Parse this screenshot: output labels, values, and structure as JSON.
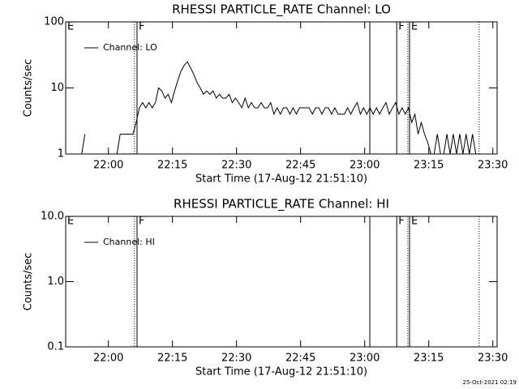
{
  "chart_data": [
    {
      "type": "line",
      "title": "RHESSI PARTICLE_RATE Channel: LO",
      "xlabel": "Start Time (17-Aug-12 21:51:10)",
      "ylabel": "Counts/sec",
      "log_y": true,
      "xlim": [
        1310,
        1411
      ],
      "ylim": [
        1,
        100
      ],
      "yticks": [
        1,
        10,
        100
      ],
      "xticks": [
        {
          "value": 1320,
          "label": "22:00"
        },
        {
          "value": 1335,
          "label": "22:15"
        },
        {
          "value": 1350,
          "label": "22:30"
        },
        {
          "value": 1365,
          "label": "22:45"
        },
        {
          "value": 1380,
          "label": "23:00"
        },
        {
          "value": 1395,
          "label": "23:15"
        },
        {
          "value": 1410,
          "label": "23:30"
        }
      ],
      "markers": [
        {
          "x": 1310,
          "style": "solid",
          "label": "E"
        },
        {
          "x": 1326.1,
          "style": "dotted"
        },
        {
          "x": 1326.7,
          "style": "solid",
          "label": "F"
        },
        {
          "x": 1381.2,
          "style": "solid"
        },
        {
          "x": 1387.5,
          "style": "solid",
          "label": "F"
        },
        {
          "x": 1390.1,
          "style": "dotted"
        },
        {
          "x": 1390.5,
          "style": "solid",
          "label": "E"
        },
        {
          "x": 1406.8,
          "style": "dotted"
        }
      ],
      "x": [
        1313.75,
        1314.5,
        1315.25,
        1316,
        1316.75,
        1317.5,
        1318.25,
        1319,
        1319.75,
        1320.5,
        1321.25,
        1322,
        1322.75,
        1323.5,
        1324.25,
        1325,
        1325.75,
        1326.5,
        1327.25,
        1328,
        1328.75,
        1329.5,
        1330.25,
        1331,
        1331.75,
        1332.5,
        1333.25,
        1334,
        1334.75,
        1335.5,
        1336.25,
        1337,
        1337.75,
        1338.5,
        1339.25,
        1340,
        1340.75,
        1341.5,
        1342.25,
        1343,
        1343.75,
        1344.5,
        1345.25,
        1346,
        1346.75,
        1347.5,
        1348.25,
        1349,
        1349.75,
        1350.5,
        1351.25,
        1352,
        1352.75,
        1353.5,
        1354.25,
        1355,
        1355.75,
        1356.5,
        1357.25,
        1358,
        1358.75,
        1359.5,
        1360.25,
        1361,
        1361.75,
        1362.5,
        1363.25,
        1364,
        1364.75,
        1365.5,
        1366.25,
        1367,
        1367.75,
        1368.5,
        1369.25,
        1370,
        1370.75,
        1371.5,
        1372.25,
        1373,
        1373.75,
        1374.5,
        1375.25,
        1376,
        1376.75,
        1377.5,
        1378.25,
        1379,
        1379.75,
        1380.5,
        1381.25,
        1382,
        1382.75,
        1383.5,
        1384.25,
        1385,
        1385.75,
        1386.5,
        1387.25,
        1388,
        1388.75,
        1389.5,
        1390.25,
        1391,
        1391.75,
        1392.5,
        1393.25,
        1394,
        1394.75,
        1395.5,
        1396.25,
        1397,
        1397.75,
        1398.5,
        1399.25,
        1400,
        1400.75,
        1401.5,
        1402.25,
        1403,
        1403.75,
        1404.5,
        1405.25,
        1406
      ],
      "series": [
        {
          "name": "Channel: LO",
          "color": "#000000",
          "values": [
            1,
            2,
            null,
            null,
            null,
            null,
            null,
            null,
            null,
            null,
            null,
            1,
            2,
            2,
            2,
            2,
            2,
            3,
            5,
            6,
            5,
            6,
            5,
            6,
            10,
            9,
            7,
            8,
            6,
            9,
            13,
            18,
            22,
            25,
            20,
            16,
            12,
            10,
            8,
            9,
            8,
            9,
            7,
            8,
            7,
            7,
            8,
            6,
            7,
            6,
            5,
            7,
            5,
            6,
            5,
            5,
            6,
            5,
            5,
            6,
            4,
            5,
            4,
            5,
            5,
            4,
            5,
            4,
            5,
            5,
            5,
            5,
            4,
            5,
            5,
            4,
            5,
            5,
            4,
            5,
            4,
            4,
            4,
            5,
            4,
            5,
            6,
            4,
            5,
            4,
            5,
            4,
            5,
            4,
            5,
            6,
            4,
            5,
            6,
            4,
            5,
            4,
            5,
            3,
            4,
            2,
            3,
            2,
            1.5,
            1,
            1,
            2,
            1,
            1,
            2,
            1,
            2,
            1,
            2,
            1,
            2,
            1,
            2,
            1
          ]
        }
      ]
    },
    {
      "type": "line",
      "title": "RHESSI PARTICLE_RATE Channel: HI",
      "xlabel": "Start Time (17-Aug-12 21:51:10)",
      "ylabel": "Counts/sec",
      "log_y": true,
      "xlim": [
        1310,
        1411
      ],
      "ylim": [
        0.1,
        10
      ],
      "yticks": [
        0.1,
        {
          "value": 1,
          "label": "1.0"
        },
        {
          "value": 10,
          "label": "10.0"
        }
      ],
      "xticks": [
        {
          "value": 1320,
          "label": "22:00"
        },
        {
          "value": 1335,
          "label": "22:15"
        },
        {
          "value": 1350,
          "label": "22:30"
        },
        {
          "value": 1365,
          "label": "22:45"
        },
        {
          "value": 1380,
          "label": "23:00"
        },
        {
          "value": 1395,
          "label": "23:15"
        },
        {
          "value": 1410,
          "label": "23:30"
        }
      ],
      "markers": [
        {
          "x": 1310,
          "style": "solid",
          "label": "E"
        },
        {
          "x": 1326.1,
          "style": "dotted"
        },
        {
          "x": 1326.7,
          "style": "solid",
          "label": "F"
        },
        {
          "x": 1381.2,
          "style": "solid"
        },
        {
          "x": 1387.5,
          "style": "solid",
          "label": "F"
        },
        {
          "x": 1390.1,
          "style": "dotted"
        },
        {
          "x": 1390.5,
          "style": "solid",
          "label": "E"
        },
        {
          "x": 1406.8,
          "style": "dotted"
        }
      ],
      "series": [
        {
          "name": "Channel: HI",
          "color": "#000000"
        }
      ]
    }
  ],
  "footer": "25-Oct-2021 02:19"
}
